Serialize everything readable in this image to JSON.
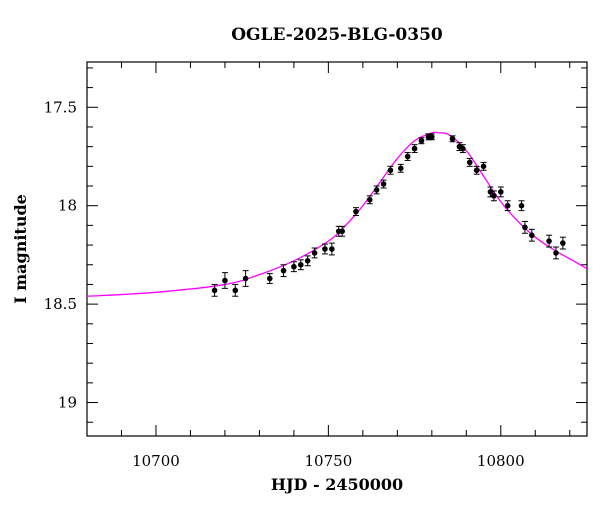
{
  "chart_data": {
    "type": "scatter",
    "title": "OGLE-2025-BLG-0350",
    "xlabel": "HJD - 2450000",
    "ylabel": "I magnitude",
    "xlim": [
      10680,
      10825
    ],
    "ylim": [
      19.17,
      17.27
    ],
    "y_inverted": true,
    "x_major_ticks": [
      10700,
      10750,
      10800
    ],
    "x_tick_labels": [
      "10700",
      "10750",
      "10800"
    ],
    "y_major_ticks": [
      17.5,
      18,
      18.5,
      19
    ],
    "y_tick_labels": [
      "17.5",
      "18",
      "18.5",
      "19"
    ],
    "grid": false,
    "legend": "none",
    "colors": {
      "points": "#000000",
      "model": "#ff00ff"
    },
    "model": {
      "name": "",
      "x": [
        10680,
        10700,
        10720,
        10730,
        10740,
        10750,
        10755,
        10760,
        10765,
        10770,
        10775,
        10780,
        10782,
        10785,
        10790,
        10795,
        10800,
        10805,
        10810,
        10815,
        10820,
        10825
      ],
      "y": [
        18.46,
        18.44,
        18.4,
        18.35,
        18.28,
        18.18,
        18.1,
        18.0,
        17.88,
        17.76,
        17.67,
        17.63,
        17.63,
        17.64,
        17.72,
        17.85,
        17.98,
        18.08,
        18.16,
        18.22,
        18.27,
        18.32
      ]
    },
    "series": [
      {
        "name": "",
        "x": [
          10717,
          10720,
          10723,
          10726,
          10733,
          10737,
          10740,
          10742,
          10744,
          10746,
          10749,
          10751,
          10753,
          10754,
          10758,
          10762,
          10764,
          10766,
          10768,
          10771,
          10773,
          10775,
          10777,
          10779,
          10780,
          10786,
          10788,
          10789,
          10791,
          10793,
          10795,
          10797,
          10798,
          10800,
          10802,
          10806,
          10807,
          10809,
          10814,
          10816,
          10818
        ],
        "y": [
          18.43,
          18.38,
          18.43,
          18.37,
          18.37,
          18.33,
          18.31,
          18.3,
          18.28,
          18.24,
          18.22,
          18.22,
          18.13,
          18.13,
          18.03,
          17.97,
          17.92,
          17.89,
          17.82,
          17.81,
          17.75,
          17.71,
          17.67,
          17.65,
          17.65,
          17.66,
          17.7,
          17.71,
          17.78,
          17.82,
          17.8,
          17.93,
          17.95,
          17.93,
          18.0,
          18.0,
          18.11,
          18.15,
          18.18,
          18.24,
          18.19
        ],
        "err": [
          0.03,
          0.04,
          0.03,
          0.04,
          0.025,
          0.03,
          0.025,
          0.025,
          0.025,
          0.025,
          0.025,
          0.03,
          0.025,
          0.025,
          0.02,
          0.02,
          0.02,
          0.02,
          0.02,
          0.02,
          0.02,
          0.02,
          0.015,
          0.015,
          0.015,
          0.015,
          0.02,
          0.02,
          0.02,
          0.02,
          0.02,
          0.025,
          0.025,
          0.025,
          0.025,
          0.025,
          0.03,
          0.03,
          0.03,
          0.03,
          0.03
        ]
      }
    ]
  }
}
